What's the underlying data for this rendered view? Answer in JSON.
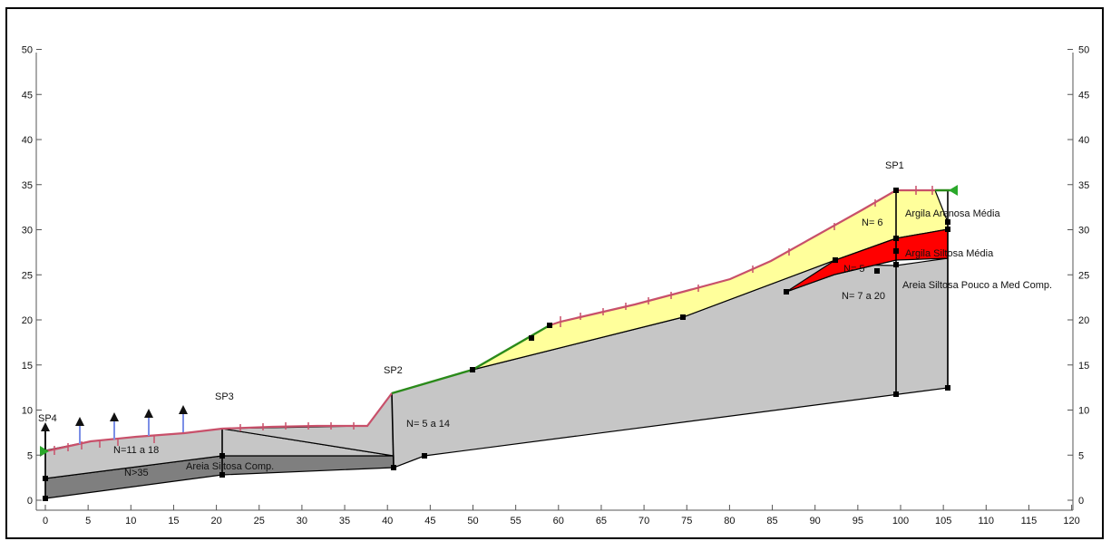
{
  "axes": {
    "x_ticks": [
      0,
      5,
      10,
      15,
      20,
      25,
      30,
      35,
      40,
      45,
      50,
      55,
      60,
      65,
      70,
      75,
      80,
      85,
      90,
      95,
      100,
      105,
      110,
      115,
      120
    ],
    "y_ticks": [
      0,
      5,
      10,
      15,
      20,
      25,
      30,
      35,
      40,
      45,
      50
    ],
    "x_range": [
      0,
      120
    ],
    "y_range": [
      0,
      50
    ]
  },
  "boreholes": [
    {
      "id": "sp4",
      "label": "SP4",
      "x": 0,
      "top": 5.5,
      "bottom": 0.4
    },
    {
      "id": "sp3",
      "label": "SP3",
      "x": 20.7,
      "top": 8.1,
      "bottom": 2.9
    },
    {
      "id": "sp2",
      "label": "SP2",
      "x": 40.5,
      "top": 12.0,
      "bottom": 3.7
    },
    {
      "id": "sp1",
      "label": "SP1",
      "x": 99.2,
      "top": 34.6,
      "bottom": 12.0
    }
  ],
  "layers": [
    {
      "id": "fill-base",
      "name": "N>35",
      "color": "#7f7f7f"
    },
    {
      "id": "fill-mid",
      "name": "Areia Siltosa Comp.",
      "color": "#c6c6c6"
    },
    {
      "id": "fill-yellow",
      "name": "Argila Arenosa Média",
      "color": "#ffff9b"
    },
    {
      "id": "fill-red",
      "name": "Argila Siltosa Média",
      "color": "#ff0000"
    }
  ],
  "annotations": {
    "n_11_18": "N=11 a 18",
    "n_35": "N>35",
    "areia_siltosa_comp": "Areia Siltosa Comp.",
    "n_5_14": "N= 5 a 14",
    "n_6": "N= 6",
    "argila_arenosa": "Argila Arenosa Média",
    "n_5": "N= 5",
    "argila_siltosa": "Argila Siltosa Média",
    "areia_pouco": "Areia Siltosa Pouco a Med Comp.",
    "n_7_20": "N= 7 a 20"
  },
  "colors": {
    "surface": "#c8506a",
    "green_segment": "#2a8a1a",
    "water_arrow": "#1a1a1a",
    "water_accent": "#7b8fe6"
  }
}
